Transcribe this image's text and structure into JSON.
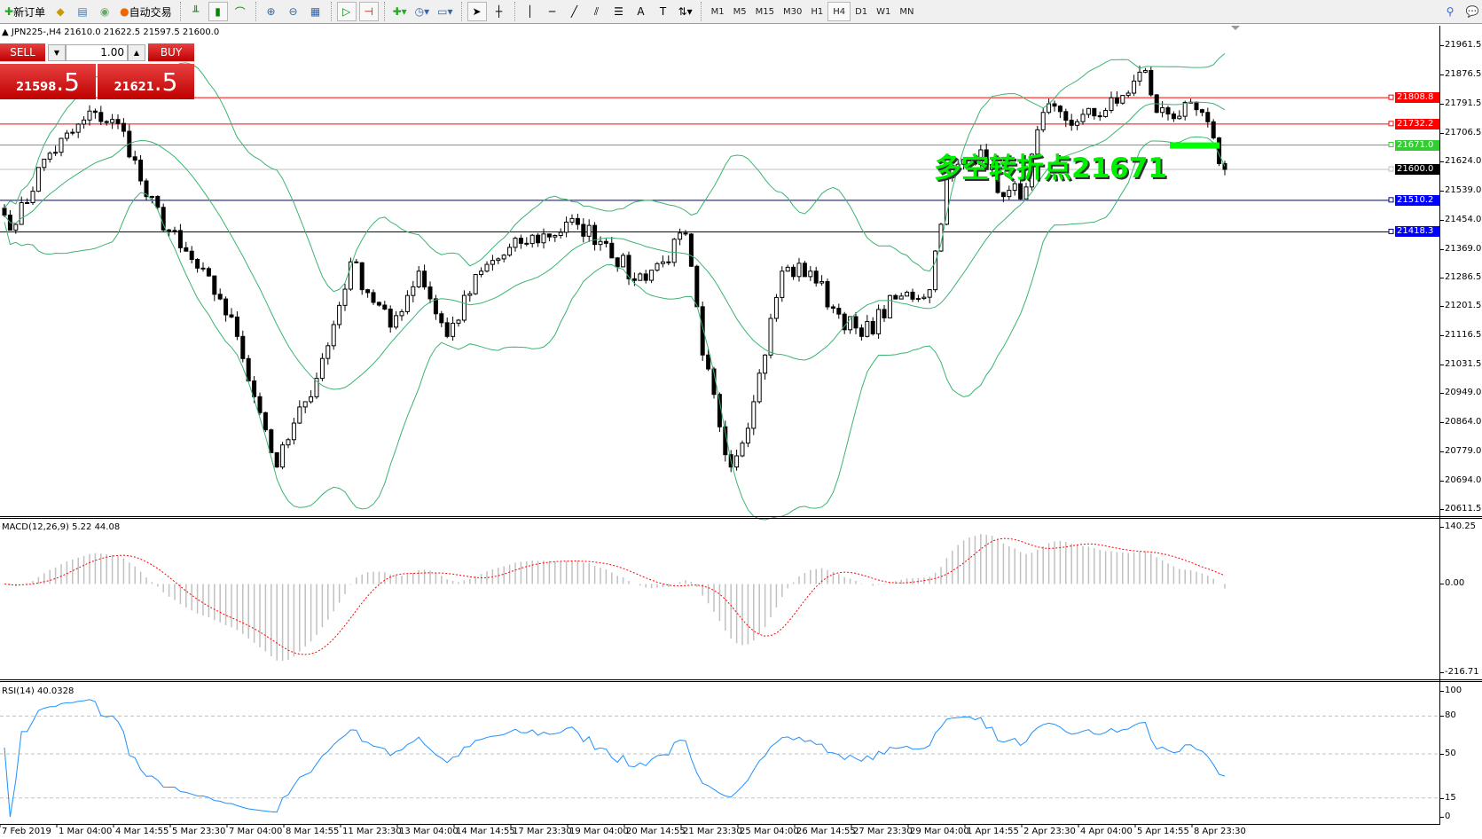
{
  "toolbar": {
    "new_order": "新订单",
    "auto_trading": "自动交易",
    "icons": [
      "gold-bars-icon",
      "history-icon",
      "signal-icon",
      "line-chart-icon",
      "bar-chart-icon",
      "candle-chart-icon",
      "zoom-in-icon",
      "zoom-out-icon",
      "tile-windows-icon",
      "autoscroll-icon",
      "chart-shift-icon",
      "indicators-icon",
      "periods-icon",
      "templates-icon",
      "cursor-icon",
      "crosshair-icon",
      "vertical-line-icon",
      "horizontal-line-icon",
      "trendline-icon",
      "equidistant-channel-icon",
      "fibonacci-icon",
      "text-icon",
      "text-label-icon",
      "arrows-icon"
    ],
    "text_tool": "A",
    "timeframes": [
      "M1",
      "M5",
      "M15",
      "M30",
      "H1",
      "H4",
      "D1",
      "W1",
      "MN"
    ],
    "active_timeframe": "H4"
  },
  "chart": {
    "header": "JPN225-,H4  21610.0 21622.5 21597.5 21600.0",
    "annotation": "多空转折点21671",
    "annotation_level": 21671,
    "price_ticks": [
      "21961.5",
      "21876.5",
      "21791.5",
      "21706.5",
      "21624.0",
      "21539.0",
      "21454.0",
      "21369.0",
      "21286.5",
      "21201.5",
      "21116.5",
      "21031.5",
      "20949.0",
      "20864.0",
      "20779.0",
      "20694.0",
      "20611.5"
    ],
    "price_range": [
      20611.5,
      21961.5
    ],
    "levels": [
      {
        "price": "21808.8",
        "color": "#ff0000"
      },
      {
        "price": "21732.2",
        "color": "#ff0000"
      },
      {
        "price": "21671.0",
        "color": "#33cc33"
      },
      {
        "price": "21600.0",
        "color": "#000000",
        "line": "#c0c0c0"
      },
      {
        "price": "21510.2",
        "color": "#0000ff",
        "line": "#000080"
      },
      {
        "price": "21418.3",
        "color": "#0000ff",
        "line": "#000080"
      }
    ],
    "close_keypoints": [
      [
        0,
        21467
      ],
      [
        2,
        21440
      ],
      [
        7,
        21630
      ],
      [
        16,
        21766
      ],
      [
        21,
        21711
      ],
      [
        25,
        21521
      ],
      [
        31,
        21372
      ],
      [
        38,
        21223
      ],
      [
        41,
        21114
      ],
      [
        46,
        20842
      ],
      [
        48,
        20734
      ],
      [
        53,
        20924
      ],
      [
        57,
        21087
      ],
      [
        61,
        21331
      ],
      [
        68,
        21141
      ],
      [
        73,
        21304
      ],
      [
        78,
        21114
      ],
      [
        84,
        21304
      ],
      [
        91,
        21385
      ],
      [
        101,
        21440
      ],
      [
        106,
        21385
      ],
      [
        111,
        21277
      ],
      [
        116,
        21331
      ],
      [
        120,
        21412
      ],
      [
        123,
        21060
      ],
      [
        128,
        20734
      ],
      [
        132,
        20924
      ],
      [
        137,
        21304
      ],
      [
        142,
        21304
      ],
      [
        146,
        21196
      ],
      [
        151,
        21114
      ],
      [
        157,
        21223
      ],
      [
        163,
        21250
      ],
      [
        166,
        21576
      ],
      [
        172,
        21657
      ],
      [
        176,
        21521
      ],
      [
        180,
        21549
      ],
      [
        183,
        21766
      ],
      [
        189,
        21739
      ],
      [
        196,
        21793
      ],
      [
        201,
        21888
      ],
      [
        203,
        21766
      ],
      [
        211,
        21766
      ],
      [
        214,
        21617
      ],
      [
        215,
        21600
      ]
    ]
  },
  "trade_panel": {
    "sell": "SELL",
    "buy": "BUY",
    "lots": "1.00",
    "bid_main": "21598",
    "bid_pips": ".5",
    "ask_main": "21621",
    "ask_pips": ".5"
  },
  "macd": {
    "label": "MACD(12,26,9) 5.22 44.08",
    "ticks": [
      "140.25",
      "0.00",
      "-216.71"
    ],
    "range": [
      -216.71,
      140.25
    ]
  },
  "rsi": {
    "label": "RSI(14) 40.0328",
    "ticks": [
      "100",
      "80",
      "50",
      "15",
      "0"
    ],
    "levels": [
      80,
      50,
      15
    ]
  },
  "time_labels": [
    "7 Feb 2019",
    "1 Mar 04:00",
    "4 Mar 14:55",
    "5 Mar 23:30",
    "7 Mar 04:00",
    "8 Mar 14:55",
    "11 Mar 23:30",
    "13 Mar 04:00",
    "14 Mar 14:55",
    "17 Mar 23:30",
    "19 Mar 04:00",
    "20 Mar 14:55",
    "21 Mar 23:30",
    "25 Mar 04:00",
    "26 Mar 14:55",
    "27 Mar 23:30",
    "29 Mar 04:00",
    "1 Apr 14:55",
    "2 Apr 23:30",
    "4 Apr 04:00",
    "5 Apr 14:55",
    "8 Apr 23:30"
  ],
  "colors": {
    "bands": "#3cb371",
    "macd_signal": "#ff0000",
    "macd_hist": "#c0c0c0",
    "rsi": "#1e90ff",
    "trade_red": "#d00000"
  }
}
